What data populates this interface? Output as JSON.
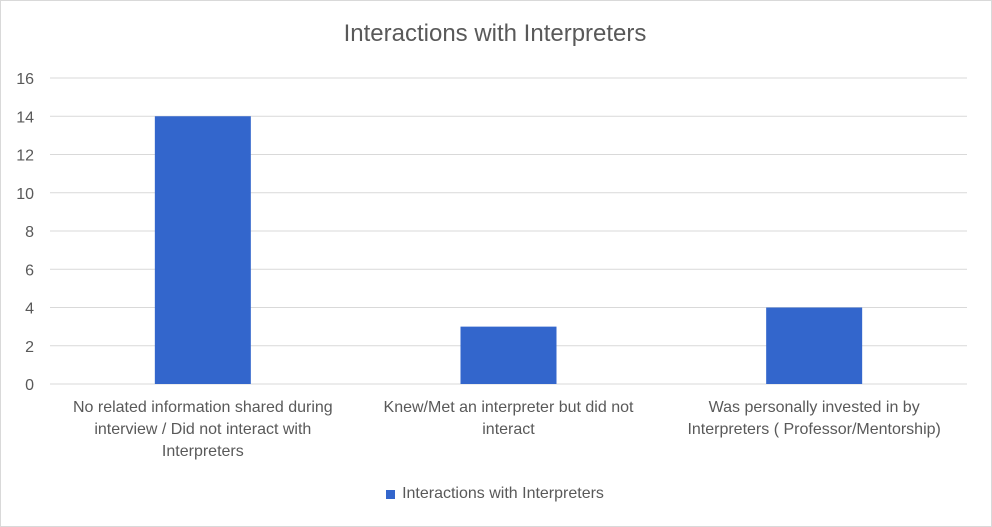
{
  "chart_data": {
    "type": "bar",
    "title": "Interactions with Interpreters",
    "categories": [
      "No related information shared during interview / Did not interact with Interpreters",
      "Knew/Met an interpreter but did not interact",
      "Was personally invested in by Interpreters ( Professor/Mentorship)"
    ],
    "series": [
      {
        "name": "Interactions with Interpreters",
        "values": [
          14,
          3,
          4
        ],
        "color": "#3366cc"
      }
    ],
    "ylim": [
      0,
      16
    ],
    "yticks": [
      0,
      2,
      4,
      6,
      8,
      10,
      12,
      14,
      16
    ],
    "grid": true,
    "legend": "bottom"
  }
}
